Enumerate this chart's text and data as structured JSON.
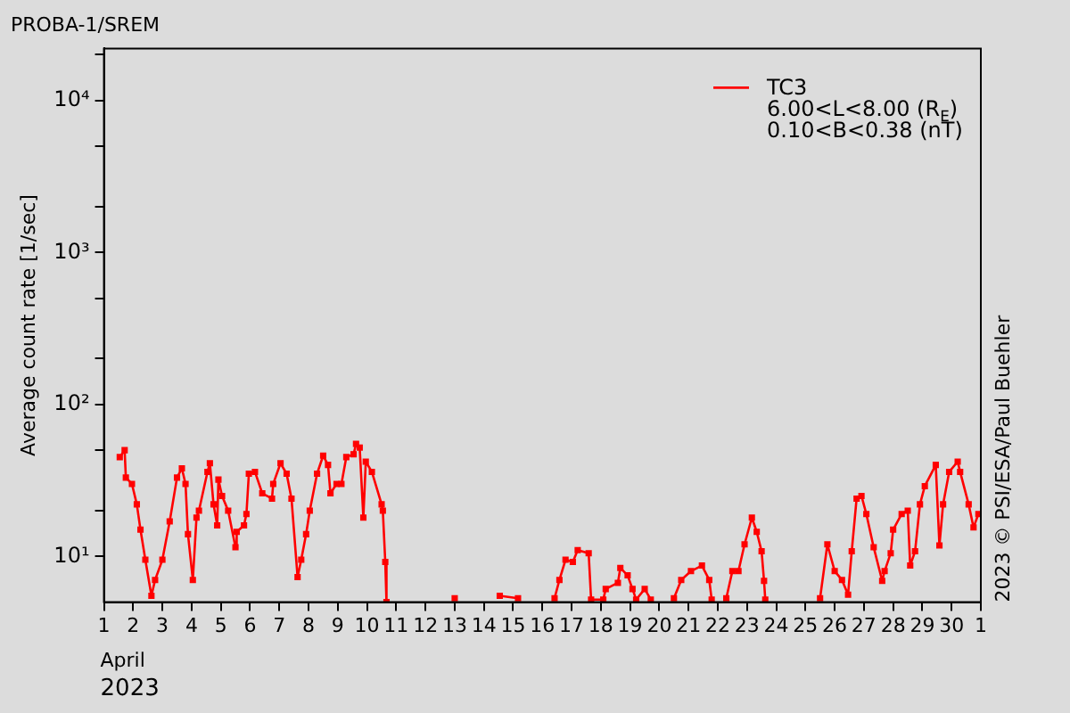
{
  "chart_data": {
    "type": "line",
    "title": "PROBA-1/SREM",
    "ylabel": "Average count rate [1/sec]",
    "x": [
      "2023-04-01T13:00",
      "2023-04-01T17:00",
      "2023-04-01T18:00",
      "2023-04-01T23:00",
      "2023-04-02T03:00",
      "2023-04-02T06:00",
      "2023-04-02T10:00",
      "2023-04-02T15:00",
      "2023-04-02T18:00",
      "2023-04-03T00:00",
      "2023-04-03T06:00",
      "2023-04-03T12:00",
      "2023-04-03T16:00",
      "2023-04-03T19:00",
      "2023-04-03T21:00",
      "2023-04-04T01:00",
      "2023-04-04T04:00",
      "2023-04-04T06:00",
      "2023-04-04T13:00",
      "2023-04-04T15:00",
      "2023-04-04T18:00",
      "2023-04-04T21:00",
      "2023-04-04T22:00",
      "2023-04-05T01:00",
      "2023-04-05T06:00",
      "2023-04-05T12:00",
      "2023-04-05T13:00",
      "2023-04-05T19:00",
      "2023-04-05T21:00",
      "2023-04-05T23:00",
      "2023-04-06T04:00",
      "2023-04-06T10:00",
      "2023-04-06T18:00",
      "2023-04-06T19:00",
      "2023-04-07T01:00",
      "2023-04-07T06:00",
      "2023-04-07T10:00",
      "2023-04-07T15:00",
      "2023-04-07T18:00",
      "2023-04-07T22:00",
      "2023-04-08T01:00",
      "2023-04-08T07:00",
      "2023-04-08T12:00",
      "2023-04-08T16:00",
      "2023-04-08T18:00",
      "2023-04-08T23:00",
      "2023-04-09T03:00",
      "2023-04-09T07:00",
      "2023-04-09T13:00",
      "2023-04-09T15:00",
      "2023-04-09T18:00",
      "2023-04-09T21:00",
      "2023-04-09T23:00",
      "2023-04-10T04:00",
      "2023-04-10T12:00",
      "2023-04-10T13:00",
      "2023-04-10T15:00",
      "2023-04-10T16:00",
      "2023-04-12T00:00",
      "2023-04-13T00:00",
      "2023-04-14T00:00",
      "2023-04-14T13:00",
      "2023-04-15T04:00",
      "2023-04-16T00:00",
      "2023-04-16T10:00",
      "2023-04-16T14:00",
      "2023-04-16T19:00",
      "2023-04-17T01:00",
      "2023-04-17T05:00",
      "2023-04-17T14:00",
      "2023-04-17T16:00",
      "2023-04-18T02:00",
      "2023-04-18T04:00",
      "2023-04-18T14:00",
      "2023-04-18T16:00",
      "2023-04-18T22:00",
      "2023-04-19T02:00",
      "2023-04-19T05:00",
      "2023-04-19T12:00",
      "2023-04-19T17:00",
      "2023-04-20T00:00",
      "2023-04-20T12:00",
      "2023-04-20T18:00",
      "2023-04-21T02:00",
      "2023-04-21T11:00",
      "2023-04-21T17:00",
      "2023-04-21T19:00",
      "2023-04-22T00:00",
      "2023-04-22T07:00",
      "2023-04-22T12:00",
      "2023-04-22T17:00",
      "2023-04-22T22:00",
      "2023-04-23T04:00",
      "2023-04-23T08:00",
      "2023-04-23T12:00",
      "2023-04-23T14:00",
      "2023-04-23T15:00",
      "2023-04-24T12:00",
      "2023-04-25T12:00",
      "2023-04-25T18:00",
      "2023-04-26T00:00",
      "2023-04-26T06:00",
      "2023-04-26T11:00",
      "2023-04-26T14:00",
      "2023-04-26T18:00",
      "2023-04-26T22:00",
      "2023-04-27T02:00",
      "2023-04-27T08:00",
      "2023-04-27T15:00",
      "2023-04-27T17:00",
      "2023-04-27T22:00",
      "2023-04-28T00:00",
      "2023-04-28T07:00",
      "2023-04-28T12:00",
      "2023-04-28T14:00",
      "2023-04-28T18:00",
      "2023-04-28T22:00",
      "2023-04-29T02:00",
      "2023-04-29T11:00",
      "2023-04-29T14:00",
      "2023-04-29T17:00",
      "2023-04-29T22:00",
      "2023-04-30T05:00",
      "2023-04-30T07:00",
      "2023-04-30T14:00",
      "2023-04-30T18:00",
      "2023-04-30T22:00"
    ],
    "series": [
      {
        "name": "TC3",
        "color": "#ff0000",
        "values": [
          45,
          50,
          33,
          30,
          22,
          15,
          9.5,
          5.5,
          7,
          9.5,
          17,
          33,
          38,
          30,
          14,
          7,
          18,
          20,
          36,
          41,
          22,
          16,
          32,
          25,
          20,
          11.5,
          14.5,
          16,
          19,
          35,
          36,
          26,
          24,
          30,
          41,
          35,
          24,
          7.3,
          9.5,
          14,
          20,
          35,
          46,
          40,
          26,
          30,
          30,
          45,
          47,
          55,
          52,
          18,
          42,
          36,
          22,
          20,
          9.2,
          5,
          null,
          5.3,
          null,
          5.5,
          5.3,
          null,
          5.3,
          7,
          9.5,
          9.2,
          11,
          10.5,
          5.2,
          5.2,
          6.1,
          6.7,
          8.4,
          7.5,
          6.1,
          5.2,
          6.1,
          5.2,
          null,
          5.3,
          7,
          8,
          8.7,
          7,
          5.2,
          null,
          5.3,
          8,
          8,
          12,
          18,
          14.5,
          10.8,
          6.9,
          5.2,
          null,
          5.3,
          12,
          8,
          7,
          5.6,
          10.8,
          24,
          25,
          19,
          11.5,
          6.9,
          8,
          10.5,
          15,
          19,
          20,
          8.7,
          10.8,
          22,
          29,
          40,
          11.8,
          22,
          36,
          42,
          36,
          22,
          15.5,
          19
        ]
      }
    ],
    "xlim": [
      "2023-04-01",
      "2023-05-01"
    ],
    "xticks": [
      {
        "value": "2023-04-01",
        "label": "1"
      },
      {
        "value": "2023-04-02",
        "label": "2"
      },
      {
        "value": "2023-04-03",
        "label": "3"
      },
      {
        "value": "2023-04-04",
        "label": "4"
      },
      {
        "value": "2023-04-05",
        "label": "5"
      },
      {
        "value": "2023-04-06",
        "label": "6"
      },
      {
        "value": "2023-04-07",
        "label": "7"
      },
      {
        "value": "2023-04-08",
        "label": "8"
      },
      {
        "value": "2023-04-09",
        "label": "9"
      },
      {
        "value": "2023-04-10",
        "label": "10"
      },
      {
        "value": "2023-04-11",
        "label": "11"
      },
      {
        "value": "2023-04-12",
        "label": "12"
      },
      {
        "value": "2023-04-13",
        "label": "13"
      },
      {
        "value": "2023-04-14",
        "label": "14"
      },
      {
        "value": "2023-04-15",
        "label": "15"
      },
      {
        "value": "2023-04-16",
        "label": "16"
      },
      {
        "value": "2023-04-17",
        "label": "17"
      },
      {
        "value": "2023-04-18",
        "label": "18"
      },
      {
        "value": "2023-04-19",
        "label": "19"
      },
      {
        "value": "2023-04-20",
        "label": "20"
      },
      {
        "value": "2023-04-21",
        "label": "21"
      },
      {
        "value": "2023-04-22",
        "label": "22"
      },
      {
        "value": "2023-04-23",
        "label": "23"
      },
      {
        "value": "2023-04-24",
        "label": "24"
      },
      {
        "value": "2023-04-25",
        "label": "25"
      },
      {
        "value": "2023-04-26",
        "label": "26"
      },
      {
        "value": "2023-04-27",
        "label": "27"
      },
      {
        "value": "2023-04-28",
        "label": "28"
      },
      {
        "value": "2023-04-29",
        "label": "29"
      },
      {
        "value": "2023-04-30",
        "label": "30"
      },
      {
        "value": "2023-05-01",
        "label": "1"
      }
    ],
    "ylim": [
      5,
      22000
    ],
    "log": "y",
    "yticks": [
      {
        "value": 10,
        "label": "10¹"
      },
      {
        "value": 20,
        "label": null
      },
      {
        "value": 50,
        "label": null
      },
      {
        "value": 100,
        "label": "10²"
      },
      {
        "value": 200,
        "label": null
      },
      {
        "value": 500,
        "label": null
      },
      {
        "value": 1000,
        "label": "10³"
      },
      {
        "value": 2000,
        "label": null
      },
      {
        "value": 5000,
        "label": null
      },
      {
        "value": 10000,
        "label": "10⁴"
      },
      {
        "value": 20000,
        "label": null
      }
    ],
    "legend": "top right",
    "marker": "square",
    "line_style": "solid",
    "annotations": [
      "6.00<L<8.00 (R$_{E}$)",
      "0.10<B<0.38 (nT)",
      "April",
      "2023",
      "2023 © PSI/ESA/Paul Buehler"
    ]
  }
}
